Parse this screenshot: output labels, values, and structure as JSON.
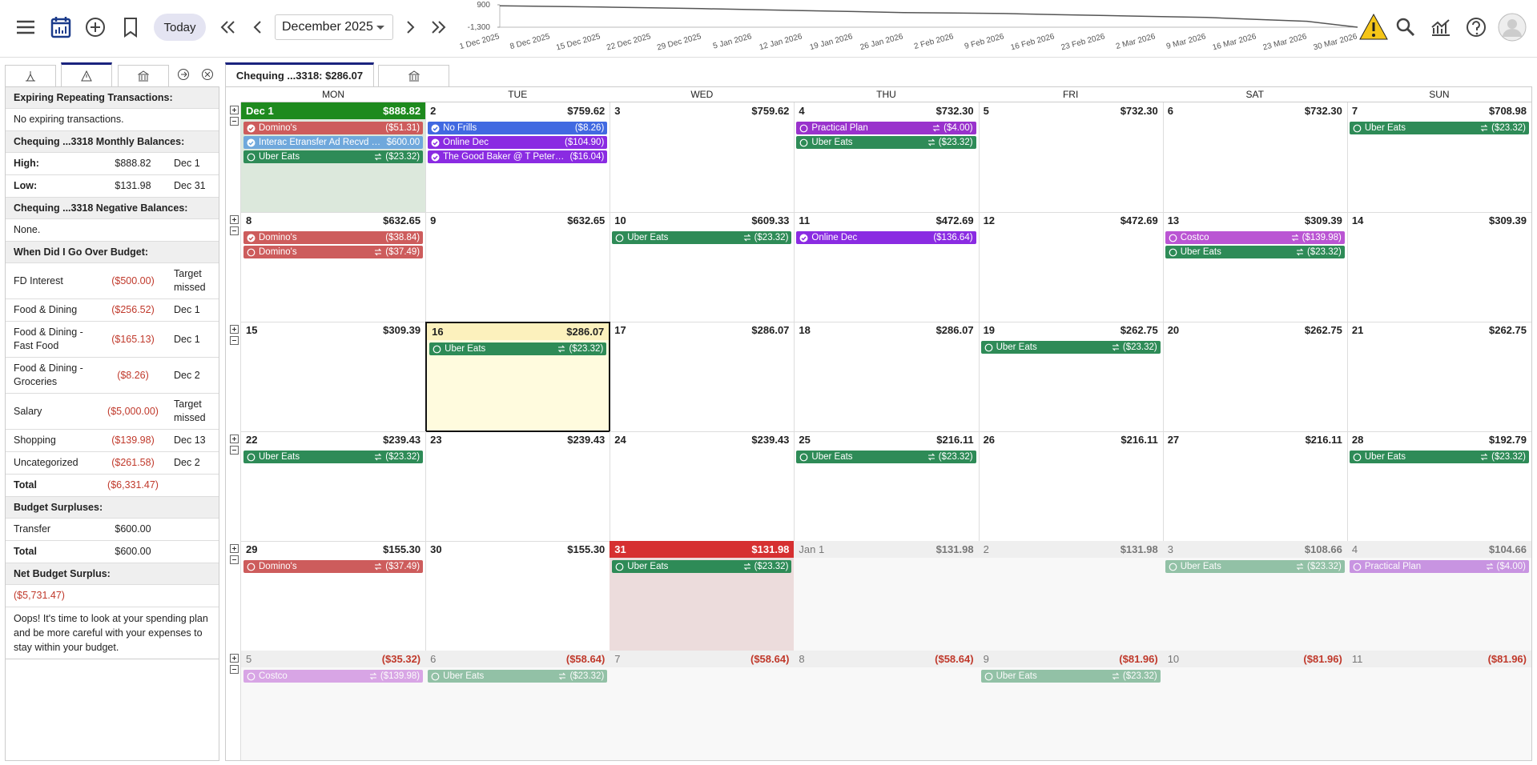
{
  "toolbar": {
    "today": "Today",
    "month": "December 2025"
  },
  "balance_chart": {
    "type": "line",
    "color": "#555555",
    "ylim": [
      -1300,
      900
    ],
    "yticks": [
      {
        "value": 900,
        "label": "900"
      },
      {
        "value": -1300,
        "label": "-1,300"
      }
    ],
    "x": [
      "1 Dec 2025",
      "8 Dec 2025",
      "15 Dec 2025",
      "22 Dec 2025",
      "29 Dec 2025",
      "5 Jan 2026",
      "12 Jan 2026",
      "19 Jan 2026",
      "26 Jan 2026",
      "2 Feb 2026",
      "9 Feb 2026",
      "16 Feb 2026",
      "23 Feb 2026",
      "2 Mar 2026",
      "9 Mar 2026",
      "16 Mar 2026",
      "23 Mar 2026",
      "30 Mar 2026"
    ],
    "values": [
      800,
      740,
      680,
      600,
      520,
      430,
      330,
      240,
      135,
      90,
      40,
      -60,
      -150,
      -250,
      -340,
      -530,
      -720,
      -1300
    ]
  },
  "sidebar": {
    "sections": [
      {
        "title": "Expiring Repeating Transactions:",
        "rows": [
          {
            "cells": [
              "No expiring transactions."
            ]
          }
        ]
      },
      {
        "title": "Chequing ...3318 Monthly Balances:",
        "rows": [
          {
            "cells": [
              "High:",
              "$888.82",
              "Dec 1"
            ],
            "bold": true
          },
          {
            "cells": [
              "Low:",
              "$131.98",
              "Dec 31"
            ],
            "bold": true
          }
        ]
      },
      {
        "title": "Chequing ...3318 Negative Balances:",
        "rows": [
          {
            "cells": [
              "None."
            ]
          }
        ]
      },
      {
        "title": "When Did I Go Over Budget:",
        "rows": [
          {
            "cells": [
              "FD Interest",
              "($500.00)",
              "Target missed"
            ]
          },
          {
            "cells": [
              "Food & Dining",
              "($256.52)",
              "Dec 1"
            ]
          },
          {
            "cells": [
              "Food & Dining - Fast Food",
              "($165.13)",
              "Dec 1"
            ]
          },
          {
            "cells": [
              "Food & Dining - Groceries",
              "($8.26)",
              "Dec 2"
            ]
          },
          {
            "cells": [
              "Salary",
              "($5,000.00)",
              "Target missed"
            ]
          },
          {
            "cells": [
              "Shopping",
              "($139.98)",
              "Dec 13"
            ]
          },
          {
            "cells": [
              "Uncategorized",
              "($261.58)",
              "Dec 2"
            ]
          },
          {
            "cells": [
              "Total",
              "($6,331.47)"
            ],
            "bold": true
          }
        ]
      },
      {
        "title": "Budget Surpluses:",
        "rows": [
          {
            "cells": [
              "Transfer",
              "$600.00"
            ]
          },
          {
            "cells": [
              "Total",
              "$600.00"
            ],
            "bold": true
          }
        ]
      },
      {
        "title": "Net Budget Surplus:",
        "rows": [
          {
            "cells": [
              "($5,731.47)"
            ]
          }
        ],
        "note": "Oops! It's time to look at your spending plan and be more careful with your expenses to stay within your budget."
      }
    ]
  },
  "calendar": {
    "tab": "Chequing ...3318: $286.07",
    "weekdays": [
      "MON",
      "TUE",
      "WED",
      "THU",
      "FRI",
      "SAT",
      "SUN"
    ],
    "weeks": [
      [
        {
          "date": "Dec 1",
          "balance": "$888.82",
          "state": "first",
          "tx": [
            {
              "name": "Domino's",
              "amount": "($51.31)",
              "color": "#cd5c5c",
              "status": "cleared"
            },
            {
              "name": "Interac Etransfer Ad Recvd Calendar",
              "amount": "$600.00",
              "color": "#6fa8dc",
              "status": "cleared"
            },
            {
              "name": "Uber Eats",
              "amount": "($23.32)",
              "color": "#2e8b57",
              "status": "scheduled",
              "recurring": true
            }
          ]
        },
        {
          "date": "2",
          "balance": "$759.62",
          "tx": [
            {
              "name": "No Frills",
              "amount": "($8.26)",
              "color": "#4169e1",
              "status": "cleared"
            },
            {
              "name": "Online Dec",
              "amount": "($104.90)",
              "color": "#8a2be2",
              "status": "cleared"
            },
            {
              "name": "The Good Baker @ T Peterborough",
              "amount": "($16.04)",
              "color": "#8a2be2",
              "status": "cleared"
            }
          ]
        },
        {
          "date": "3",
          "balance": "$759.62",
          "tx": []
        },
        {
          "date": "4",
          "balance": "$732.30",
          "tx": [
            {
              "name": "Practical Plan",
              "amount": "($4.00)",
              "color": "#9932cc",
              "status": "scheduled",
              "recurring": true
            },
            {
              "name": "Uber Eats",
              "amount": "($23.32)",
              "color": "#2e8b57",
              "status": "scheduled",
              "recurring": true
            }
          ]
        },
        {
          "date": "5",
          "balance": "$732.30",
          "tx": []
        },
        {
          "date": "6",
          "balance": "$732.30",
          "tx": []
        },
        {
          "date": "7",
          "balance": "$708.98",
          "tx": [
            {
              "name": "Uber Eats",
              "amount": "($23.32)",
              "color": "#2e8b57",
              "status": "scheduled",
              "recurring": true
            }
          ]
        }
      ],
      [
        {
          "date": "8",
          "balance": "$632.65",
          "tx": [
            {
              "name": "Domino's",
              "amount": "($38.84)",
              "color": "#cd5c5c",
              "status": "cleared"
            },
            {
              "name": "Domino's",
              "amount": "($37.49)",
              "color": "#cd5c5c",
              "status": "scheduled",
              "recurring": true
            }
          ]
        },
        {
          "date": "9",
          "balance": "$632.65",
          "tx": []
        },
        {
          "date": "10",
          "balance": "$609.33",
          "tx": [
            {
              "name": "Uber Eats",
              "amount": "($23.32)",
              "color": "#2e8b57",
              "status": "scheduled",
              "recurring": true
            }
          ]
        },
        {
          "date": "11",
          "balance": "$472.69",
          "tx": [
            {
              "name": "Online Dec",
              "amount": "($136.64)",
              "color": "#8a2be2",
              "status": "cleared"
            }
          ]
        },
        {
          "date": "12",
          "balance": "$472.69",
          "tx": []
        },
        {
          "date": "13",
          "balance": "$309.39",
          "tx": [
            {
              "name": "Costco",
              "amount": "($139.98)",
              "color": "#ba55d3",
              "status": "scheduled",
              "recurring": true
            },
            {
              "name": "Uber Eats",
              "amount": "($23.32)",
              "color": "#2e8b57",
              "status": "scheduled",
              "recurring": true
            }
          ]
        },
        {
          "date": "14",
          "balance": "$309.39",
          "tx": []
        }
      ],
      [
        {
          "date": "15",
          "balance": "$309.39",
          "tx": []
        },
        {
          "date": "16",
          "balance": "$286.07",
          "state": "today",
          "tx": [
            {
              "name": "Uber Eats",
              "amount": "($23.32)",
              "color": "#2e8b57",
              "status": "scheduled",
              "recurring": true
            }
          ]
        },
        {
          "date": "17",
          "balance": "$286.07",
          "tx": []
        },
        {
          "date": "18",
          "balance": "$286.07",
          "tx": []
        },
        {
          "date": "19",
          "balance": "$262.75",
          "tx": [
            {
              "name": "Uber Eats",
              "amount": "($23.32)",
              "color": "#2e8b57",
              "status": "scheduled",
              "recurring": true
            }
          ]
        },
        {
          "date": "20",
          "balance": "$262.75",
          "tx": []
        },
        {
          "date": "21",
          "balance": "$262.75",
          "tx": []
        }
      ],
      [
        {
          "date": "22",
          "balance": "$239.43",
          "tx": [
            {
              "name": "Uber Eats",
              "amount": "($23.32)",
              "color": "#2e8b57",
              "status": "scheduled",
              "recurring": true
            }
          ]
        },
        {
          "date": "23",
          "balance": "$239.43",
          "tx": []
        },
        {
          "date": "24",
          "balance": "$239.43",
          "tx": []
        },
        {
          "date": "25",
          "balance": "$216.11",
          "tx": [
            {
              "name": "Uber Eats",
              "amount": "($23.32)",
              "color": "#2e8b57",
              "status": "scheduled",
              "recurring": true
            }
          ]
        },
        {
          "date": "26",
          "balance": "$216.11",
          "tx": []
        },
        {
          "date": "27",
          "balance": "$216.11",
          "tx": []
        },
        {
          "date": "28",
          "balance": "$192.79",
          "tx": [
            {
              "name": "Uber Eats",
              "amount": "($23.32)",
              "color": "#2e8b57",
              "status": "scheduled",
              "recurring": true
            }
          ]
        }
      ],
      [
        {
          "date": "29",
          "balance": "$155.30",
          "tx": [
            {
              "name": "Domino's",
              "amount": "($37.49)",
              "color": "#cd5c5c",
              "status": "scheduled",
              "recurring": true
            }
          ]
        },
        {
          "date": "30",
          "balance": "$155.30",
          "tx": []
        },
        {
          "date": "31",
          "balance": "$131.98",
          "state": "low",
          "tx": [
            {
              "name": "Uber Eats",
              "amount": "($23.32)",
              "color": "#2e8b57",
              "status": "scheduled",
              "recurring": true
            }
          ]
        },
        {
          "date": "Jan 1",
          "balance": "$131.98",
          "state": "other",
          "tx": []
        },
        {
          "date": "2",
          "balance": "$131.98",
          "state": "other",
          "tx": []
        },
        {
          "date": "3",
          "balance": "$108.66",
          "state": "other",
          "tx": [
            {
              "name": "Uber Eats",
              "amount": "($23.32)",
              "color": "#2e8b57",
              "status": "scheduled",
              "recurring": true
            }
          ]
        },
        {
          "date": "4",
          "balance": "$104.66",
          "state": "other",
          "tx": [
            {
              "name": "Practical Plan",
              "amount": "($4.00)",
              "color": "#9932cc",
              "status": "scheduled",
              "recurring": true
            }
          ]
        }
      ],
      [
        {
          "date": "5",
          "balance": "($35.32)",
          "state": "other",
          "tx": [
            {
              "name": "Costco",
              "amount": "($139.98)",
              "color": "#ba55d3",
              "status": "scheduled",
              "recurring": true
            }
          ]
        },
        {
          "date": "6",
          "balance": "($58.64)",
          "state": "other",
          "tx": [
            {
              "name": "Uber Eats",
              "amount": "($23.32)",
              "color": "#2e8b57",
              "status": "scheduled",
              "recurring": true
            }
          ]
        },
        {
          "date": "7",
          "balance": "($58.64)",
          "state": "other",
          "tx": []
        },
        {
          "date": "8",
          "balance": "($58.64)",
          "state": "other",
          "tx": []
        },
        {
          "date": "9",
          "balance": "($81.96)",
          "state": "other",
          "tx": [
            {
              "name": "Uber Eats",
              "amount": "($23.32)",
              "color": "#2e8b57",
              "status": "scheduled",
              "recurring": true
            }
          ]
        },
        {
          "date": "10",
          "balance": "($81.96)",
          "state": "other",
          "tx": []
        },
        {
          "date": "11",
          "balance": "($81.96)",
          "state": "other",
          "tx": []
        }
      ]
    ]
  }
}
